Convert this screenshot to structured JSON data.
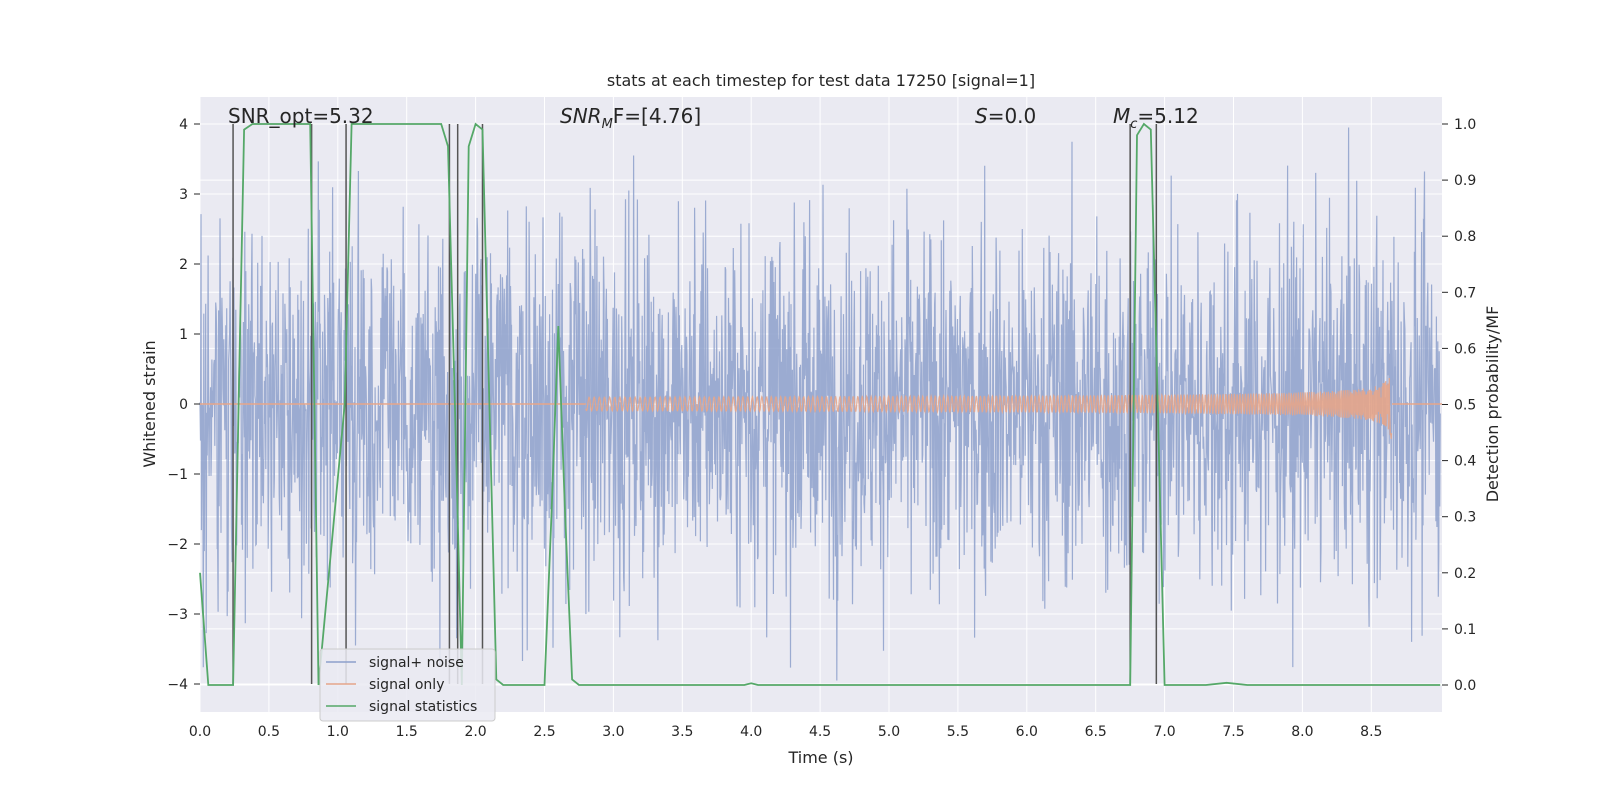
{
  "chart_data": {
    "type": "line",
    "title": "stats at each timestep for test data 17250 [signal=1]",
    "xlabel": "Time (s)",
    "ylabel_left": "Whitened strain",
    "ylabel_right": "Detection probability/MF",
    "xlim": [
      0.0,
      9.0
    ],
    "ylim_left": [
      -4.4,
      4.4
    ],
    "ylim_right": [
      -0.05,
      1.05
    ],
    "x_ticks": [
      0.0,
      0.5,
      1.0,
      1.5,
      2.0,
      2.5,
      3.0,
      3.5,
      4.0,
      4.5,
      5.0,
      5.5,
      6.0,
      6.5,
      7.0,
      7.5,
      8.0,
      8.5
    ],
    "x_tick_labels": [
      "0.0",
      "0.5",
      "1.0",
      "1.5",
      "2.0",
      "2.5",
      "3.0",
      "3.5",
      "4.0",
      "4.5",
      "5.0",
      "5.5",
      "6.0",
      "6.5",
      "7.0",
      "7.5",
      "8.0",
      "8.5"
    ],
    "y_left_ticks": [
      4,
      3,
      2,
      1,
      0,
      -1,
      -2,
      -3,
      -4
    ],
    "y_left_tick_labels": [
      "4",
      "3",
      "2",
      "1",
      "0",
      "−1",
      "−2",
      "−3",
      "−4"
    ],
    "y_right_ticks": [
      1.0,
      0.9,
      0.8,
      0.7,
      0.6,
      0.5,
      0.4,
      0.3,
      0.2,
      0.1,
      0.0
    ],
    "y_right_tick_labels": [
      "1.0",
      "0.9",
      "0.8",
      "0.7",
      "0.6",
      "0.5",
      "0.4",
      "0.3",
      "0.2",
      "0.1",
      "0.0"
    ],
    "grid": true,
    "legend_position": "lower-left",
    "annotations": {
      "snr_opt": "SNR_opt=5.32",
      "snr_mf_prefix": "SNR",
      "snr_mf_sub": "M",
      "snr_mf_suffix": "F=[4.76]",
      "s_name": "S",
      "s_value": "=0.0",
      "mc_name": "M",
      "mc_sub": "c",
      "mc_value": "=5.12"
    },
    "series": [
      {
        "name": "signal+ noise",
        "color": "#8da0cb",
        "description": "whitened noisy strain, amplitude roughly -4..4",
        "noise_amplitude_sigma": 1.3,
        "duration_s": 9.0
      },
      {
        "name": "signal only",
        "color": "#e5a58a",
        "description": "chirp signal growing until merger",
        "start_s": 2.8,
        "merger_s": 8.65,
        "peak_amplitude": 0.6
      },
      {
        "name": "signal statistics",
        "color": "#55a868",
        "x": [
          0.0,
          0.06,
          0.24,
          0.28,
          0.32,
          0.38,
          0.5,
          0.8,
          0.83,
          0.86,
          1.05,
          1.1,
          1.3,
          1.75,
          1.8,
          1.85,
          1.9,
          1.95,
          2.0,
          2.05,
          2.1,
          2.15,
          2.2,
          2.5,
          2.55,
          2.6,
          2.65,
          2.7,
          2.75,
          3.0,
          3.95,
          4.0,
          4.05,
          6.75,
          6.8,
          6.85,
          6.9,
          6.95,
          7.0,
          7.3,
          7.45,
          7.6,
          9.0
        ],
        "y": [
          0.2,
          0.0,
          0.0,
          0.5,
          0.99,
          1.0,
          1.0,
          1.0,
          0.5,
          0.0,
          0.5,
          1.0,
          1.0,
          1.0,
          0.96,
          0.5,
          0.0,
          0.96,
          1.0,
          0.99,
          0.5,
          0.01,
          0.0,
          0.0,
          0.3,
          0.64,
          0.3,
          0.01,
          0.0,
          0.0,
          0.0,
          0.003,
          0.0,
          0.0,
          0.98,
          1.0,
          0.99,
          0.5,
          0.0,
          0.0,
          0.004,
          0.0,
          0.0
        ]
      }
    ],
    "vertical_markers_s": [
      0.24,
      0.81,
      1.06,
      1.81,
      1.87,
      2.05,
      6.75,
      6.94
    ]
  }
}
